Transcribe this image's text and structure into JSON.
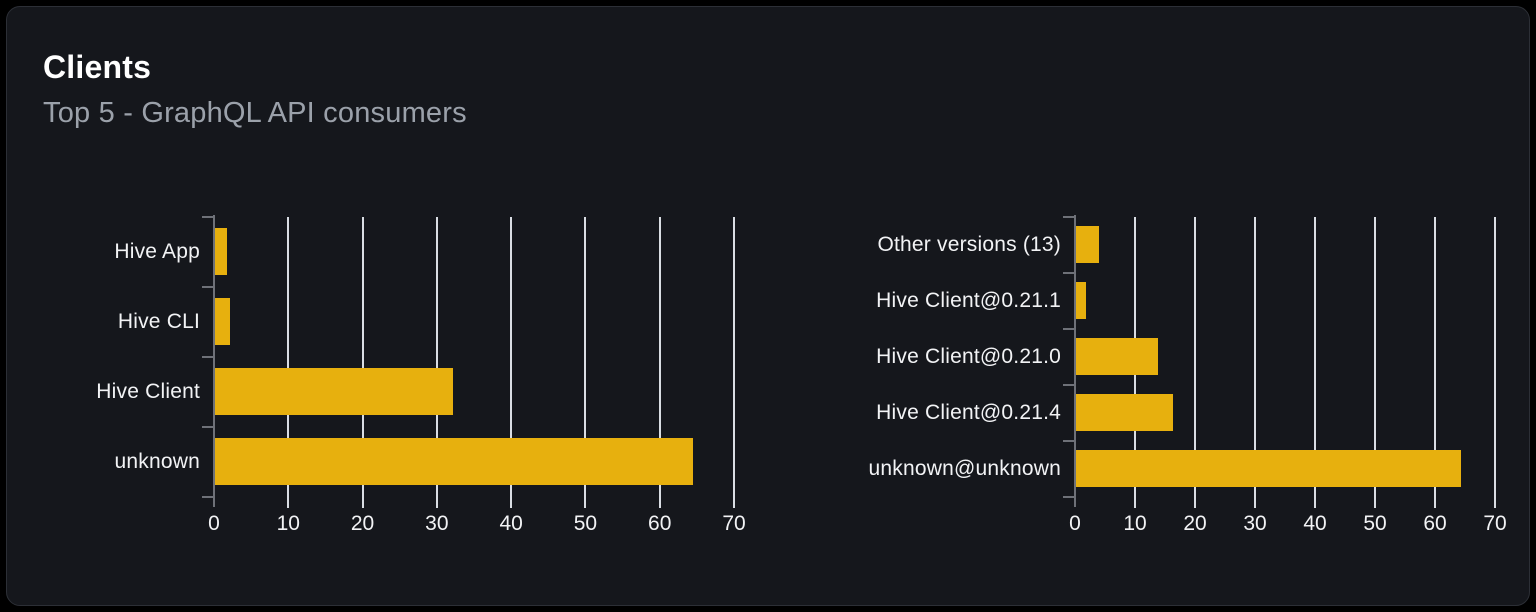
{
  "card": {
    "title": "Clients",
    "subtitle": "Top 5 - GraphQL API consumers"
  },
  "colors": {
    "page_bg": "#000000",
    "card_bg": "#15171c",
    "card_border": "#2c2f36",
    "bar": "#e7b00e",
    "gridline": "#d9dde3",
    "axis": "#6e7178",
    "title": "#ffffff",
    "subtitle": "#9ba1aa",
    "label": "#f2f3f5"
  },
  "chart_data": [
    {
      "type": "bar",
      "orientation": "horizontal",
      "name": "client-names",
      "categories": [
        "Hive App",
        "Hive CLI",
        "Hive Client",
        "unknown"
      ],
      "values": [
        1.7,
        2.2,
        32.2,
        64.5
      ],
      "xlim": [
        0,
        70
      ],
      "xticks": [
        0,
        10,
        20,
        30,
        40,
        50,
        60,
        70
      ],
      "grid": true,
      "legend": false,
      "title": "",
      "xlabel": "",
      "ylabel": ""
    },
    {
      "type": "bar",
      "orientation": "horizontal",
      "name": "client-versions",
      "categories": [
        "Other versions (13)",
        "Hive Client@0.21.1",
        "Hive Client@0.21.0",
        "Hive Client@0.21.4",
        "unknown@unknown"
      ],
      "values": [
        4.0,
        1.9,
        13.8,
        16.4,
        64.3
      ],
      "xlim": [
        0,
        70
      ],
      "xticks": [
        0,
        10,
        20,
        30,
        40,
        50,
        60,
        70
      ],
      "grid": true,
      "legend": false,
      "title": "",
      "xlabel": "",
      "ylabel": ""
    }
  ]
}
